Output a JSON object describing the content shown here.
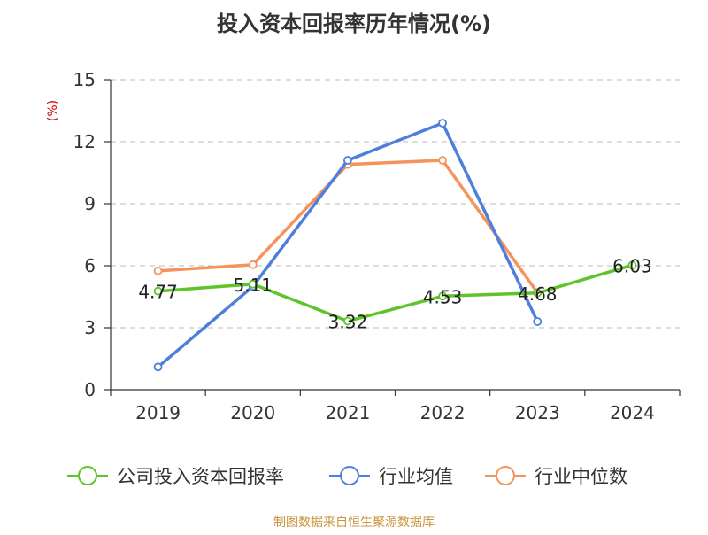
{
  "chart_data": {
    "type": "line",
    "title": "投入资本回报率历年情况(%)",
    "ylabel": "(%)",
    "categories": [
      "2019",
      "2020",
      "2021",
      "2022",
      "2023",
      "2024"
    ],
    "ylim": [
      0,
      15
    ],
    "yticks": [
      0,
      3,
      6,
      9,
      12,
      15
    ],
    "grid": true,
    "legend_position": "bottom",
    "series": [
      {
        "name": "公司投入资本回报率",
        "color": "#5ec42a",
        "values": [
          4.77,
          5.11,
          3.32,
          4.53,
          4.68,
          6.03
        ],
        "labels": [
          "4.77",
          "5.11",
          "3.32",
          "4.53",
          "4.68",
          "6.03"
        ]
      },
      {
        "name": "行业均值",
        "color": "#4e7fdc",
        "values": [
          1.1,
          5.0,
          11.1,
          12.9,
          3.3,
          null
        ]
      },
      {
        "name": "行业中位数",
        "color": "#f4935b",
        "values": [
          5.75,
          6.05,
          10.9,
          11.1,
          4.7,
          null
        ]
      }
    ]
  },
  "footer": {
    "source": "制图数据来自恒生聚源数据库"
  },
  "colors": {
    "axis": "#333333",
    "grid": "#bbbbbb",
    "ylabel": "#cc0000",
    "source": "#c8943c"
  }
}
